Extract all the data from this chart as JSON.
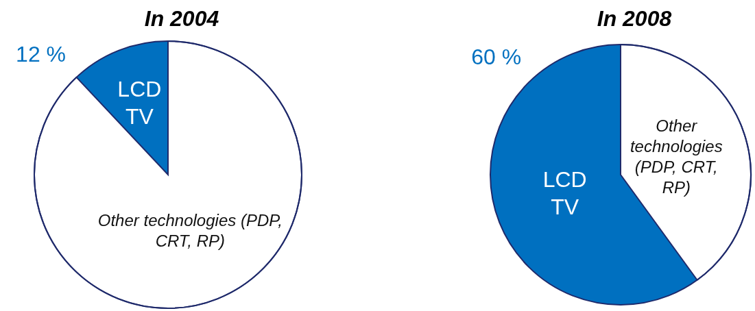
{
  "chart_data": [
    {
      "type": "pie",
      "title": "In 2004",
      "categories": [
        "LCD TV",
        "Other technologies (PDP, CRT, RP)"
      ],
      "values": [
        12,
        88
      ],
      "colors": [
        "#0070c0",
        "#ffffff"
      ],
      "value_labels": [
        "12 %",
        null
      ]
    },
    {
      "type": "pie",
      "title": "In 2008",
      "categories": [
        "LCD TV",
        "Other technologies (PDP, CRT, RP)"
      ],
      "values": [
        60,
        40
      ],
      "colors": [
        "#0070c0",
        "#ffffff"
      ],
      "value_labels": [
        "60 %",
        null
      ]
    }
  ]
}
